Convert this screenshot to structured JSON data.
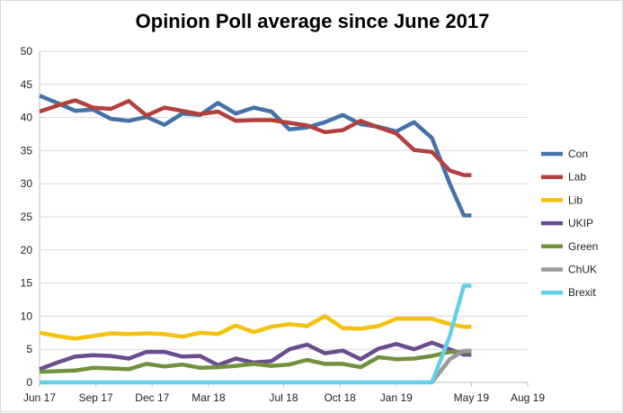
{
  "chart_data": {
    "type": "line",
    "title": "Opinion Poll average since June 2017",
    "xlabel": "",
    "ylabel": "",
    "ylim": [
      0,
      50
    ],
    "y_ticks": [
      0,
      5,
      10,
      15,
      20,
      25,
      30,
      35,
      40,
      45,
      50
    ],
    "x_ticks": [
      {
        "label": "Jun 17",
        "value": 0
      },
      {
        "label": "Sep 17",
        "value": 3
      },
      {
        "label": "Dec 17",
        "value": 6
      },
      {
        "label": "Mar 18",
        "value": 9
      },
      {
        "label": "Jul 18",
        "value": 13
      },
      {
        "label": "Oct 18",
        "value": 16
      },
      {
        "label": "Jan 19",
        "value": 19
      },
      {
        "label": "May 19",
        "value": 23
      },
      {
        "label": "Aug 19",
        "value": 26
      }
    ],
    "xlim": [
      0,
      26
    ],
    "gridlines": true,
    "legend_position": "right",
    "x": [
      0,
      0.95,
      1.9,
      2.85,
      3.8,
      4.75,
      5.7,
      6.65,
      7.6,
      8.55,
      9.5,
      10.45,
      11.4,
      12.35,
      13.3,
      14.25,
      15.2,
      16.15,
      17.1,
      18.05,
      19.0,
      19.95,
      20.9,
      21.85,
      22.6,
      23.0
    ],
    "series": [
      {
        "name": "Con",
        "color": "#4472a8",
        "values": [
          43.3,
          42.2,
          41.0,
          41.2,
          39.8,
          39.5,
          40.1,
          38.9,
          40.6,
          40.4,
          42.2,
          40.6,
          41.5,
          40.9,
          38.2,
          38.5,
          39.3,
          40.4,
          39.0,
          38.6,
          37.9,
          39.3,
          36.9,
          30.0,
          25.2,
          25.2
        ]
      },
      {
        "name": "Lab",
        "color": "#b2403d",
        "values": [
          40.9,
          41.8,
          42.6,
          41.5,
          41.3,
          42.5,
          40.3,
          41.5,
          41.0,
          40.5,
          40.9,
          39.5,
          39.6,
          39.6,
          39.2,
          38.8,
          37.8,
          38.1,
          39.5,
          38.5,
          37.6,
          35.1,
          34.8,
          32.0,
          31.3,
          31.3
        ]
      },
      {
        "name": "Lib",
        "color": "#f4c20d",
        "values": [
          7.5,
          7.0,
          6.6,
          7.0,
          7.4,
          7.3,
          7.4,
          7.3,
          6.9,
          7.5,
          7.3,
          8.6,
          7.6,
          8.4,
          8.8,
          8.5,
          10.0,
          8.2,
          8.1,
          8.5,
          9.6,
          9.6,
          9.6,
          8.8,
          8.4,
          8.4
        ]
      },
      {
        "name": "UKIP",
        "color": "#6b4d8e",
        "values": [
          2.0,
          3.0,
          3.9,
          4.1,
          4.0,
          3.6,
          4.6,
          4.6,
          3.9,
          4.0,
          2.6,
          3.6,
          3.0,
          3.2,
          5.0,
          5.7,
          4.4,
          4.8,
          3.5,
          5.1,
          5.8,
          5.0,
          6.0,
          5.0,
          4.2,
          4.2
        ]
      },
      {
        "name": "Green",
        "color": "#71913f",
        "values": [
          1.6,
          1.7,
          1.8,
          2.2,
          2.1,
          2.0,
          2.8,
          2.4,
          2.7,
          2.2,
          2.3,
          2.5,
          2.8,
          2.5,
          2.7,
          3.4,
          2.8,
          2.8,
          2.3,
          3.8,
          3.5,
          3.6,
          4.0,
          4.6,
          4.6,
          4.6
        ]
      },
      {
        "name": "ChUK",
        "color": "#9a9a9a",
        "values": [
          null,
          null,
          null,
          null,
          null,
          null,
          null,
          null,
          null,
          null,
          null,
          null,
          null,
          null,
          null,
          null,
          null,
          null,
          null,
          null,
          null,
          null,
          0,
          3.5,
          4.8,
          4.8
        ]
      },
      {
        "name": "Brexit",
        "color": "#62d0e8",
        "values": [
          0,
          0,
          0,
          0,
          0,
          0,
          0,
          0,
          0,
          0,
          0,
          0,
          0,
          0,
          0,
          0,
          0,
          0,
          0,
          0,
          0,
          0,
          0,
          7.0,
          14.6,
          14.6
        ]
      }
    ]
  }
}
